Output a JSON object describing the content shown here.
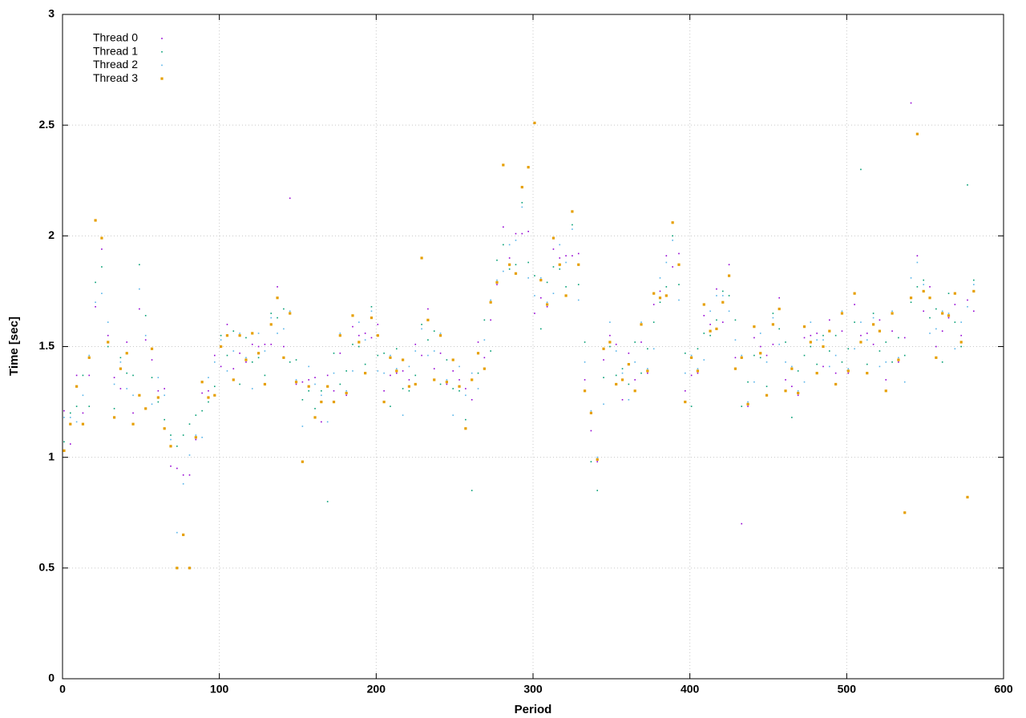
{
  "chart_data": {
    "type": "scatter",
    "xlabel": "Period",
    "ylabel": "Time [sec]",
    "xlim": [
      0,
      600
    ],
    "ylim": [
      0,
      3
    ],
    "xticks": [
      0,
      100,
      200,
      300,
      400,
      500,
      600
    ],
    "yticks": [
      0,
      0.5,
      1,
      1.5,
      2,
      2.5,
      3
    ],
    "grid": true,
    "legend": "top-left",
    "x": [
      1,
      5,
      9,
      13,
      17,
      21,
      25,
      29,
      33,
      37,
      41,
      45,
      49,
      53,
      57,
      61,
      65,
      69,
      73,
      77,
      81,
      85,
      89,
      93,
      97,
      101,
      105,
      109,
      113,
      117,
      121,
      125,
      129,
      133,
      137,
      141,
      145,
      149,
      153,
      157,
      161,
      165,
      169,
      173,
      177,
      181,
      185,
      189,
      193,
      197,
      201,
      205,
      209,
      213,
      217,
      221,
      225,
      229,
      233,
      237,
      241,
      245,
      249,
      253,
      257,
      261,
      265,
      269,
      273,
      277,
      281,
      285,
      289,
      293,
      297,
      301,
      305,
      309,
      313,
      317,
      321,
      325,
      329,
      333,
      337,
      341,
      345,
      349,
      353,
      357,
      361,
      365,
      369,
      373,
      377,
      381,
      385,
      389,
      393,
      397,
      401,
      405,
      409,
      413,
      417,
      421,
      425,
      429,
      433,
      437,
      441,
      445,
      449,
      453,
      457,
      461,
      465,
      469,
      473,
      477,
      481,
      485,
      489,
      493,
      497,
      501,
      505,
      509,
      513,
      517,
      521,
      525,
      529,
      533,
      537,
      541,
      545,
      549,
      553,
      557,
      561,
      565,
      569,
      573,
      577,
      581
    ],
    "series": [
      {
        "name": "Thread 0",
        "color": "#9400d3",
        "values": [
          1.21,
          1.06,
          1.37,
          1.2,
          1.37,
          1.68,
          1.94,
          1.55,
          1.36,
          1.31,
          1.52,
          1.2,
          1.67,
          1.53,
          1.44,
          1.3,
          1.31,
          0.96,
          0.95,
          0.92,
          0.92,
          1.08,
          1.29,
          1.3,
          1.46,
          1.41,
          1.6,
          1.4,
          1.47,
          1.43,
          1.51,
          1.5,
          1.51,
          1.51,
          1.77,
          1.5,
          2.17,
          1.33,
          1.34,
          1.35,
          1.36,
          1.16,
          1.37,
          1.3,
          1.47,
          1.28,
          1.59,
          1.55,
          1.56,
          1.54,
          1.6,
          1.3,
          1.37,
          1.38,
          1.39,
          1.35,
          1.51,
          1.46,
          1.67,
          1.4,
          1.47,
          1.33,
          1.39,
          1.35,
          1.31,
          1.26,
          1.52,
          1.45,
          1.62,
          1.78,
          2.04,
          1.9,
          2.01,
          2.01,
          2.02,
          1.65,
          1.72,
          1.68,
          1.94,
          1.9,
          1.91,
          1.91,
          1.92,
          1.35,
          1.12,
          0.98,
          1.44,
          1.55,
          1.51,
          1.26,
          1.47,
          1.35,
          1.52,
          1.38,
          1.69,
          1.75,
          1.91,
          1.86,
          1.92,
          1.3,
          1.37,
          1.38,
          1.64,
          1.6,
          1.76,
          1.61,
          1.87,
          1.45,
          0.7,
          1.23,
          1.54,
          1.5,
          1.46,
          1.51,
          1.72,
          1.35,
          1.32,
          1.28,
          1.54,
          1.55,
          1.56,
          1.41,
          1.62,
          1.38,
          1.57,
          1.38,
          1.69,
          1.55,
          1.56,
          1.51,
          1.62,
          1.35,
          1.57,
          1.43,
          1.54,
          2.6,
          1.91,
          1.66,
          1.77,
          1.5,
          1.57,
          1.63,
          1.69,
          1.55,
          1.71,
          1.66
        ]
      },
      {
        "name": "Thread 1",
        "color": "#009e73",
        "values": [
          1.07,
          1.2,
          1.23,
          1.37,
          1.23,
          1.79,
          1.86,
          1.5,
          1.22,
          1.45,
          1.38,
          1.37,
          1.87,
          1.64,
          1.36,
          1.25,
          1.17,
          1.1,
          1.05,
          1.1,
          1.15,
          1.19,
          1.21,
          1.25,
          1.32,
          1.55,
          1.46,
          1.57,
          1.33,
          1.54,
          1.43,
          1.45,
          1.37,
          1.65,
          1.63,
          1.67,
          1.43,
          1.44,
          1.26,
          1.3,
          1.22,
          1.3,
          0.8,
          1.47,
          1.33,
          1.39,
          1.51,
          1.5,
          1.42,
          1.68,
          1.46,
          1.47,
          1.23,
          1.49,
          1.31,
          1.3,
          1.37,
          1.6,
          1.53,
          1.57,
          1.33,
          1.44,
          1.31,
          1.3,
          1.17,
          0.85,
          1.38,
          1.62,
          1.48,
          1.89,
          1.96,
          1.85,
          1.87,
          2.15,
          1.88,
          1.82,
          1.58,
          1.79,
          1.86,
          1.85,
          1.77,
          2.05,
          1.78,
          1.52,
          0.98,
          0.85,
          1.36,
          1.5,
          1.37,
          1.4,
          1.33,
          1.52,
          1.38,
          1.49,
          1.61,
          1.7,
          1.77,
          2.0,
          1.78,
          1.47,
          1.23,
          1.49,
          1.56,
          1.55,
          1.62,
          1.75,
          1.73,
          1.62,
          1.23,
          1.34,
          1.46,
          1.45,
          1.32,
          1.65,
          1.58,
          1.52,
          1.18,
          1.39,
          1.46,
          1.5,
          1.42,
          1.55,
          1.48,
          1.55,
          1.43,
          1.49,
          1.61,
          2.3,
          1.42,
          1.65,
          1.48,
          1.52,
          1.43,
          1.54,
          1.46,
          1.7,
          1.77,
          1.8,
          1.63,
          1.67,
          1.43,
          1.74,
          1.61,
          1.5,
          2.23,
          1.8
        ]
      },
      {
        "name": "Thread 2",
        "color": "#56b4e9",
        "values": [
          1.18,
          1.18,
          1.16,
          1.28,
          1.46,
          1.7,
          1.74,
          1.61,
          1.33,
          1.43,
          1.31,
          1.28,
          1.76,
          1.55,
          1.24,
          1.36,
          1.28,
          1.08,
          0.66,
          0.88,
          1.01,
          1.1,
          1.09,
          1.36,
          1.43,
          1.53,
          1.39,
          1.48,
          1.56,
          1.45,
          1.31,
          1.56,
          1.48,
          1.63,
          1.56,
          1.58,
          1.66,
          1.35,
          1.14,
          1.41,
          1.33,
          1.28,
          1.16,
          1.38,
          1.56,
          1.3,
          1.39,
          1.61,
          1.53,
          1.66,
          1.39,
          1.38,
          1.46,
          1.4,
          1.19,
          1.41,
          1.48,
          1.58,
          1.46,
          1.48,
          1.56,
          1.35,
          1.19,
          1.41,
          1.28,
          1.38,
          1.31,
          1.53,
          1.71,
          1.8,
          1.84,
          1.96,
          1.98,
          2.13,
          1.81,
          1.73,
          1.81,
          1.7,
          1.74,
          1.96,
          1.88,
          2.03,
          1.71,
          1.43,
          1.21,
          1.0,
          1.24,
          1.61,
          1.48,
          1.38,
          1.26,
          1.43,
          1.61,
          1.4,
          1.49,
          1.81,
          1.88,
          1.98,
          1.71,
          1.38,
          1.46,
          1.4,
          1.44,
          1.66,
          1.73,
          1.73,
          1.66,
          1.53,
          1.46,
          1.25,
          1.34,
          1.56,
          1.43,
          1.63,
          1.51,
          1.43,
          1.41,
          1.3,
          1.34,
          1.61,
          1.53,
          1.53,
          1.41,
          1.46,
          1.66,
          1.4,
          1.49,
          1.61,
          1.53,
          1.63,
          1.41,
          1.43,
          1.66,
          1.45,
          1.34,
          1.81,
          1.88,
          1.78,
          1.56,
          1.58,
          1.66,
          1.65,
          1.49,
          1.61,
          1.68,
          1.78
        ]
      },
      {
        "name": "Thread 3",
        "color": "#e69f00",
        "values": [
          1.03,
          1.15,
          1.32,
          1.15,
          1.45,
          2.07,
          1.99,
          1.52,
          1.18,
          1.4,
          1.47,
          1.15,
          1.28,
          1.22,
          1.49,
          1.27,
          1.13,
          1.05,
          0.5,
          0.65,
          0.5,
          1.09,
          1.34,
          1.27,
          1.28,
          1.5,
          1.55,
          1.35,
          1.55,
          1.44,
          1.56,
          1.47,
          1.33,
          1.6,
          1.72,
          1.45,
          1.65,
          1.34,
          0.98,
          1.32,
          1.18,
          1.25,
          1.32,
          1.25,
          1.55,
          1.29,
          1.64,
          1.52,
          1.38,
          1.63,
          1.55,
          1.25,
          1.45,
          1.39,
          1.44,
          1.32,
          1.33,
          1.9,
          1.62,
          1.35,
          1.55,
          1.34,
          1.44,
          1.32,
          1.13,
          1.35,
          1.47,
          1.4,
          1.7,
          1.79,
          2.32,
          1.87,
          1.83,
          2.22,
          2.31,
          2.51,
          1.8,
          1.69,
          1.99,
          1.87,
          1.73,
          2.11,
          1.87,
          1.3,
          1.2,
          0.99,
          1.49,
          1.52,
          1.33,
          1.35,
          1.42,
          1.3,
          1.6,
          1.39,
          1.74,
          1.72,
          1.73,
          2.06,
          1.87,
          1.25,
          1.45,
          1.39,
          1.69,
          1.57,
          1.58,
          1.7,
          1.82,
          1.4,
          1.45,
          1.24,
          1.59,
          1.47,
          1.28,
          1.6,
          1.67,
          1.3,
          1.4,
          1.29,
          1.59,
          1.52,
          1.38,
          1.5,
          1.57,
          1.33,
          1.65,
          1.39,
          1.74,
          1.52,
          1.38,
          1.6,
          1.57,
          1.3,
          1.65,
          1.44,
          0.75,
          1.72,
          2.46,
          1.75,
          1.72,
          1.45,
          1.65,
          1.64,
          1.74,
          1.52,
          0.82,
          1.75
        ]
      }
    ]
  }
}
